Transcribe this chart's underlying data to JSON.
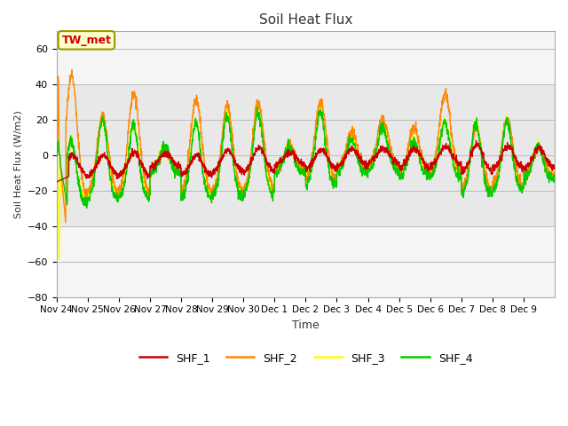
{
  "title": "Soil Heat Flux",
  "ylabel": "Soil Heat Flux (W/m2)",
  "xlabel": "Time",
  "ylim": [
    -80,
    70
  ],
  "yticks": [
    -80,
    -60,
    -40,
    -20,
    0,
    20,
    40,
    60
  ],
  "colors": {
    "SHF_1": "#cc0000",
    "SHF_2": "#ff8800",
    "SHF_3": "#ffff00",
    "SHF_4": "#00cc00"
  },
  "annotation_text": "TW_met",
  "annotation_color": "#cc0000",
  "annotation_bg": "#ffffcc",
  "annotation_border": "#999900",
  "grid_color": "#bbbbbb",
  "plot_bg": "#d8d8d8",
  "band_bg": "#e8e8e8",
  "n_days": 16,
  "n_per_day": 144,
  "tick_labels": [
    "Nov 24",
    "Nov 25",
    "Nov 26",
    "Nov 27",
    "Nov 28",
    "Nov 29",
    "Nov 30",
    "Dec 1",
    "Dec 2",
    "Dec 3",
    "Dec 4",
    "Dec 5",
    "Dec 6",
    "Dec 7",
    "Dec 8",
    "Dec 9"
  ],
  "linewidth": 1.0
}
